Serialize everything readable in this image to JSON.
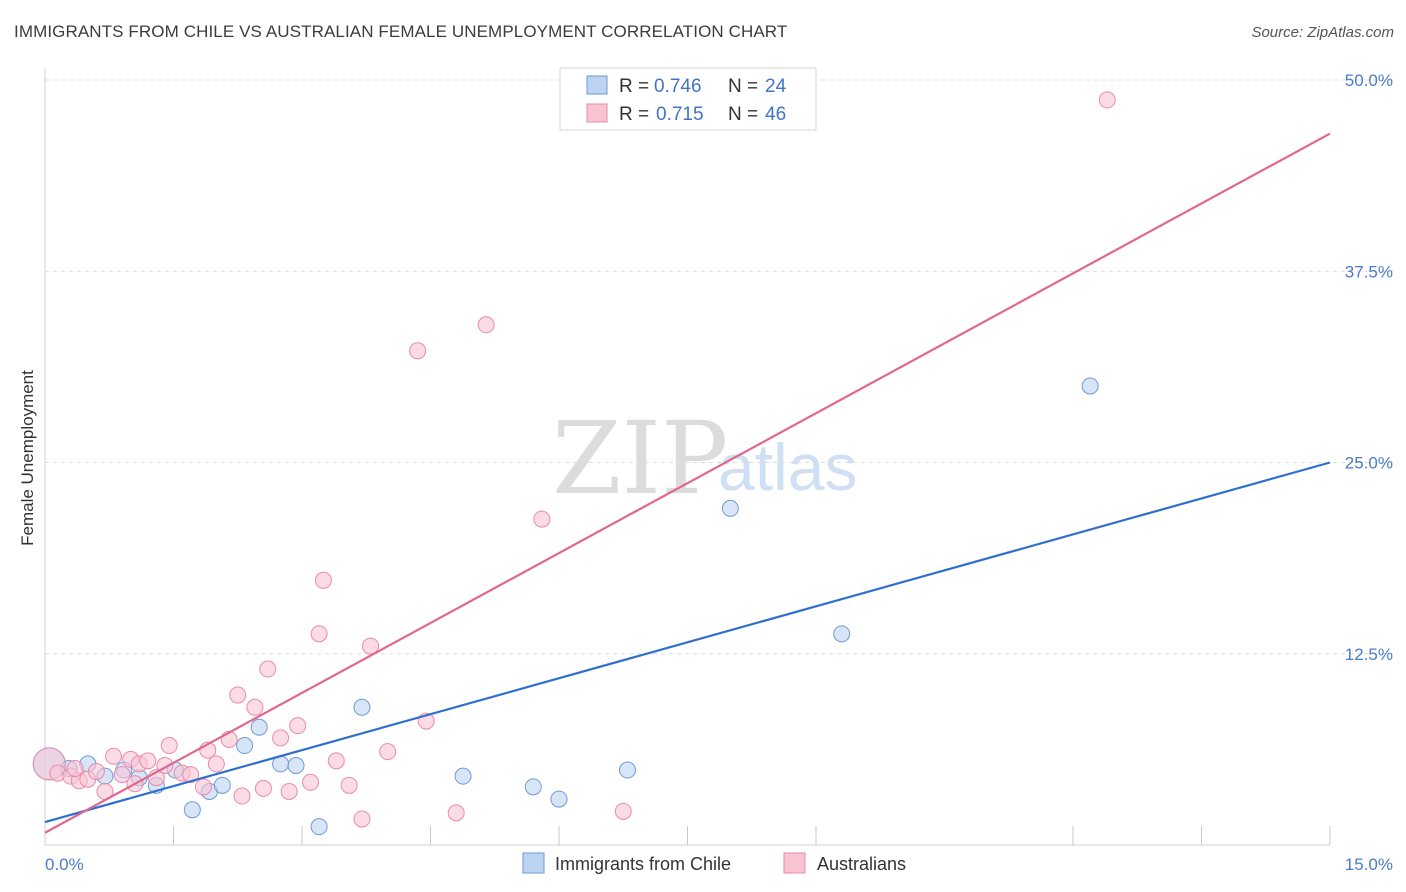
{
  "header": {
    "title": "IMMIGRANTS FROM CHILE VS AUSTRALIAN FEMALE UNEMPLOYMENT CORRELATION CHART",
    "source": "Source: ZipAtlas.com"
  },
  "watermark": {
    "zip": "ZIP",
    "atlas": "atlas"
  },
  "colors": {
    "blue_fill": "#bcd3f2",
    "blue_stroke": "#6f9ad6",
    "blue_line": "#2e6fcf",
    "pink_fill": "#f8c4d4",
    "pink_stroke": "#e88aaa",
    "pink_line": "#e0678f",
    "grid": "#dcdcdc",
    "tick_text": "#4a7cc7"
  },
  "chart_data": {
    "type": "scatter",
    "title": "IMMIGRANTS FROM CHILE VS AUSTRALIAN FEMALE UNEMPLOYMENT CORRELATION CHART",
    "xlabel": "Immigrants from Chile",
    "ylabel": "Female Unemployment",
    "xlim": [
      0,
      15
    ],
    "ylim": [
      0,
      50
    ],
    "x_tick_labels": [
      {
        "value": 0,
        "label": "0.0%"
      },
      {
        "value": 15,
        "label": "15.0%"
      }
    ],
    "y_tick_labels": [
      {
        "value": 12.5,
        "label": "12.5%"
      },
      {
        "value": 25,
        "label": "25.0%"
      },
      {
        "value": 37.5,
        "label": "37.5%"
      },
      {
        "value": 50,
        "label": "50.0%"
      }
    ],
    "legend": [
      {
        "series": "Immigrants from Chile",
        "r_label": "R =",
        "r": "0.746",
        "n_label": "N =",
        "n": "24"
      },
      {
        "series": "Australians",
        "r_label": "R =",
        "r": "0.715",
        "n_label": "N =",
        "n": "46"
      }
    ],
    "series": [
      {
        "name": "Immigrants from Chile",
        "color": "blue",
        "trend": {
          "x": [
            0,
            15
          ],
          "y": [
            1.5,
            25.0
          ]
        },
        "points": [
          {
            "x": 0.05,
            "y": 5.3,
            "big": true
          },
          {
            "x": 0.28,
            "y": 5.0
          },
          {
            "x": 0.5,
            "y": 5.3
          },
          {
            "x": 0.7,
            "y": 4.5
          },
          {
            "x": 0.92,
            "y": 4.9
          },
          {
            "x": 1.1,
            "y": 4.4
          },
          {
            "x": 1.3,
            "y": 3.9
          },
          {
            "x": 1.52,
            "y": 4.9
          },
          {
            "x": 1.72,
            "y": 2.3
          },
          {
            "x": 1.92,
            "y": 3.5
          },
          {
            "x": 2.07,
            "y": 3.9
          },
          {
            "x": 2.33,
            "y": 6.5
          },
          {
            "x": 2.5,
            "y": 7.7
          },
          {
            "x": 2.75,
            "y": 5.3
          },
          {
            "x": 2.93,
            "y": 5.2
          },
          {
            "x": 3.2,
            "y": 1.2
          },
          {
            "x": 3.7,
            "y": 9.0
          },
          {
            "x": 4.88,
            "y": 4.5
          },
          {
            "x": 5.7,
            "y": 3.8
          },
          {
            "x": 6.0,
            "y": 3.0
          },
          {
            "x": 6.8,
            "y": 4.9
          },
          {
            "x": 8.0,
            "y": 22.0
          },
          {
            "x": 9.3,
            "y": 13.8
          },
          {
            "x": 12.2,
            "y": 30.0
          }
        ]
      },
      {
        "name": "Australians",
        "color": "pink",
        "trend": {
          "x": [
            0,
            15
          ],
          "y": [
            0.8,
            46.5
          ]
        },
        "points": [
          {
            "x": 0.05,
            "y": 5.3,
            "big": true
          },
          {
            "x": 0.15,
            "y": 4.7
          },
          {
            "x": 0.3,
            "y": 4.5
          },
          {
            "x": 0.4,
            "y": 4.2
          },
          {
            "x": 0.5,
            "y": 4.3
          },
          {
            "x": 0.6,
            "y": 4.8
          },
          {
            "x": 0.7,
            "y": 3.5
          },
          {
            "x": 0.8,
            "y": 5.8
          },
          {
            "x": 0.9,
            "y": 4.6
          },
          {
            "x": 1.0,
            "y": 5.6
          },
          {
            "x": 1.1,
            "y": 5.3
          },
          {
            "x": 1.2,
            "y": 5.5
          },
          {
            "x": 1.3,
            "y": 4.4
          },
          {
            "x": 1.4,
            "y": 5.2
          },
          {
            "x": 1.45,
            "y": 6.5
          },
          {
            "x": 1.6,
            "y": 4.7
          },
          {
            "x": 1.7,
            "y": 4.6
          },
          {
            "x": 1.85,
            "y": 3.8
          },
          {
            "x": 1.9,
            "y": 6.2
          },
          {
            "x": 2.0,
            "y": 5.3
          },
          {
            "x": 2.15,
            "y": 6.9
          },
          {
            "x": 2.25,
            "y": 9.8
          },
          {
            "x": 2.3,
            "y": 3.2
          },
          {
            "x": 2.45,
            "y": 9.0
          },
          {
            "x": 2.55,
            "y": 3.7
          },
          {
            "x": 2.6,
            "y": 11.5
          },
          {
            "x": 2.75,
            "y": 7.0
          },
          {
            "x": 2.85,
            "y": 3.5
          },
          {
            "x": 2.95,
            "y": 7.8
          },
          {
            "x": 3.1,
            "y": 4.1
          },
          {
            "x": 3.2,
            "y": 13.8
          },
          {
            "x": 3.25,
            "y": 17.3
          },
          {
            "x": 3.4,
            "y": 5.5
          },
          {
            "x": 3.55,
            "y": 3.9
          },
          {
            "x": 3.7,
            "y": 1.7
          },
          {
            "x": 3.8,
            "y": 13.0
          },
          {
            "x": 4.0,
            "y": 6.1
          },
          {
            "x": 4.35,
            "y": 32.3
          },
          {
            "x": 4.45,
            "y": 8.1
          },
          {
            "x": 4.8,
            "y": 2.1
          },
          {
            "x": 5.15,
            "y": 34.0
          },
          {
            "x": 5.8,
            "y": 21.3
          },
          {
            "x": 6.75,
            "y": 2.2
          },
          {
            "x": 12.4,
            "y": 48.7
          },
          {
            "x": 0.35,
            "y": 5.0
          },
          {
            "x": 1.05,
            "y": 4.0
          }
        ]
      }
    ]
  }
}
